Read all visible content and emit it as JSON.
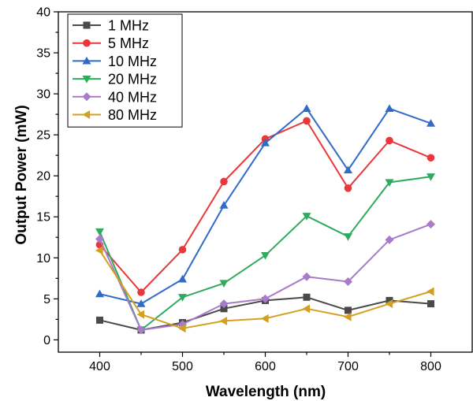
{
  "chart_data": {
    "type": "line",
    "xlabel": "Wavelength (nm)",
    "ylabel": "Output Power (mW)",
    "xlim": [
      350,
      850
    ],
    "ylim": [
      -1.5,
      40
    ],
    "x_ticks": [
      400,
      500,
      600,
      700,
      800
    ],
    "y_ticks": [
      0,
      5,
      10,
      15,
      20,
      25,
      30,
      35,
      40
    ],
    "grid": false,
    "legend_position": "top-left",
    "x": [
      400,
      450,
      500,
      550,
      600,
      650,
      700,
      750,
      800
    ],
    "series": [
      {
        "name": "1 MHz",
        "color": "#4a4a4a",
        "marker": "square",
        "values": [
          2.4,
          1.2,
          2.1,
          3.8,
          4.8,
          5.2,
          3.6,
          4.8,
          4.4
        ]
      },
      {
        "name": "5 MHz",
        "color": "#e8383b",
        "marker": "circle",
        "values": [
          11.6,
          5.8,
          11.0,
          19.3,
          24.5,
          26.7,
          18.5,
          24.3,
          22.2
        ]
      },
      {
        "name": "10 MHz",
        "color": "#2f6bc7",
        "marker": "triangle-up",
        "values": [
          5.6,
          4.4,
          7.4,
          16.4,
          24.0,
          28.2,
          20.7,
          28.2,
          26.4
        ]
      },
      {
        "name": "20 MHz",
        "color": "#2faa5f",
        "marker": "triangle-down",
        "values": [
          13.2,
          1.2,
          5.2,
          6.9,
          10.3,
          15.1,
          12.6,
          19.2,
          19.9
        ]
      },
      {
        "name": "40 MHz",
        "color": "#a87cc8",
        "marker": "diamond",
        "values": [
          12.3,
          1.2,
          1.9,
          4.4,
          5.0,
          7.7,
          7.1,
          12.2,
          14.1
        ]
      },
      {
        "name": "80 MHz",
        "color": "#d4a021",
        "marker": "triangle-left",
        "values": [
          10.9,
          3.1,
          1.4,
          2.3,
          2.6,
          3.8,
          2.8,
          4.4,
          5.9
        ]
      }
    ]
  }
}
